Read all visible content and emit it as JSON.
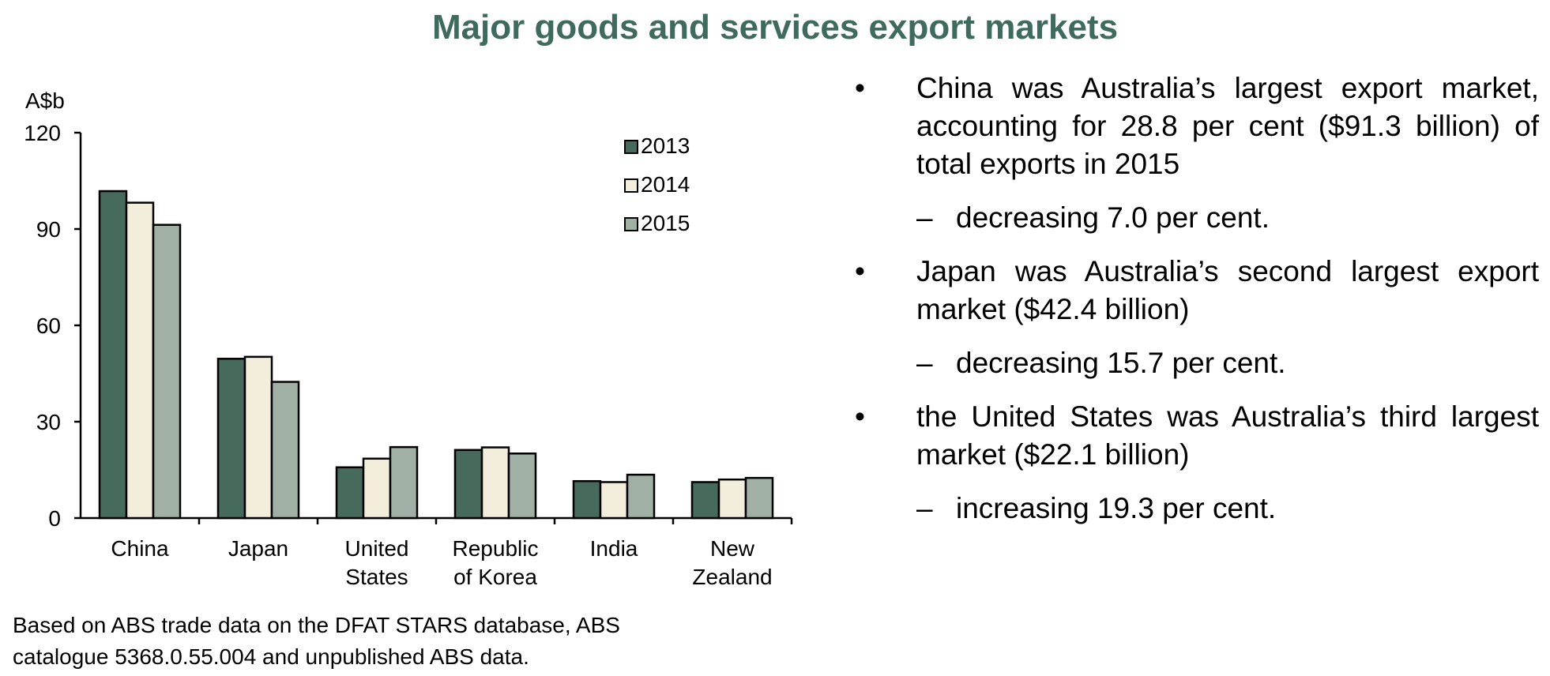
{
  "title": "Major goods and services export markets",
  "source": [
    "Based on ABS trade data on the DFAT STARS database, ABS",
    "catalogue 5368.0.55.004 and unpublished ABS data."
  ],
  "bullets": [
    {
      "text": "China was Australia’s largest export market, accounting for 28.8 per cent ($91.3 billion) of total exports in 2015",
      "sub": "decreasing 7.0 per cent."
    },
    {
      "text": "Japan was Australia’s second largest export market ($42.4 billion)",
      "sub": "decreasing 15.7 per cent."
    },
    {
      "text": "the United States was Australia’s third largest market ($22.1 billion)",
      "sub": "increasing 19.3 per cent."
    }
  ],
  "bullet_symbol": "•",
  "dash_symbol": "–",
  "colors": {
    "title": "#3e6b5d",
    "2013": "#466a5c",
    "2014": "#f3eedb",
    "2015": "#a1b0a5"
  },
  "chart_data": {
    "type": "bar",
    "ylabel": "A$b",
    "ylim": [
      0,
      120
    ],
    "yticks": [
      0,
      30,
      60,
      90,
      120
    ],
    "grid": false,
    "legend": "top-right",
    "categories": [
      [
        "China"
      ],
      [
        "Japan"
      ],
      [
        "United",
        "States"
      ],
      [
        "Republic",
        "of Korea"
      ],
      [
        "India"
      ],
      [
        "New",
        "Zealand"
      ]
    ],
    "series": [
      {
        "name": "2013",
        "values": [
          101.8,
          49.6,
          15.8,
          21.2,
          11.5,
          11.2
        ]
      },
      {
        "name": "2014",
        "values": [
          98.2,
          50.2,
          18.5,
          22.0,
          11.2,
          12.0
        ]
      },
      {
        "name": "2015",
        "values": [
          91.3,
          42.4,
          22.1,
          20.1,
          13.5,
          12.5
        ]
      }
    ]
  }
}
